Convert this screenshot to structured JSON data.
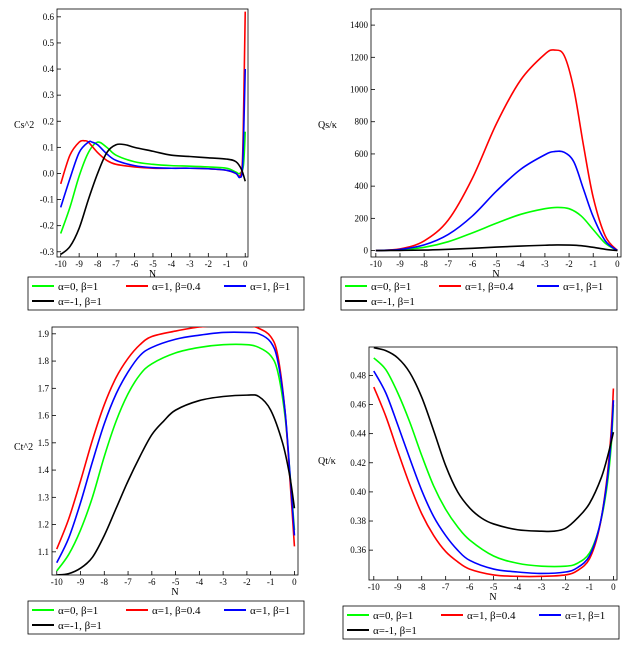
{
  "series_style": {
    "colors": [
      "#00ff00",
      "#ff0000",
      "#0000ff",
      "#000000"
    ]
  },
  "legend": [
    "α=0, β=1",
    "α=1, β=0.4",
    "α=1, β=1",
    "α=-1, β=1"
  ],
  "chart_data": [
    {
      "type": "line",
      "ylabel": "Cs^2",
      "xlabel": "N",
      "xlim": [
        -10.2,
        0.15
      ],
      "ylim": [
        -0.32,
        0.63
      ],
      "xticks": [
        -10,
        -9,
        -8,
        -7,
        -6,
        -5,
        -4,
        -3,
        -2,
        -1,
        0
      ],
      "yticks": [
        -0.3,
        -0.2,
        -0.1,
        0.0,
        0.1,
        0.2,
        0.3,
        0.4,
        0.5,
        0.6
      ],
      "ytick_labels": [
        "-0.3",
        "-0.2",
        "-0.1",
        "0.0",
        "0.1",
        "0.2",
        "0.3",
        "0.4",
        "0.5",
        "0.6"
      ],
      "series": [
        {
          "name": "α=0, β=1",
          "x": [
            -10,
            -9.5,
            -9,
            -8.5,
            -8,
            -7.5,
            -7,
            -6,
            -5,
            -4,
            -3,
            -2,
            -1,
            -0.5,
            -0.3,
            -0.1,
            0
          ],
          "y": [
            -0.23,
            -0.13,
            -0.01,
            0.08,
            0.12,
            0.1,
            0.07,
            0.045,
            0.035,
            0.03,
            0.028,
            0.025,
            0.02,
            0.005,
            0.0,
            0.03,
            0.16
          ]
        },
        {
          "name": "α=1, β=0.4",
          "x": [
            -10,
            -9.5,
            -9,
            -8.7,
            -8.5,
            -8,
            -7.5,
            -7,
            -6,
            -5,
            -4,
            -3,
            -2,
            -1,
            -0.5,
            -0.3,
            -0.15,
            -0.05,
            0
          ],
          "y": [
            -0.04,
            0.07,
            0.12,
            0.125,
            0.12,
            0.08,
            0.05,
            0.035,
            0.025,
            0.02,
            0.02,
            0.02,
            0.018,
            0.012,
            0.0,
            -0.01,
            0.05,
            0.4,
            0.62
          ]
        },
        {
          "name": "α=1, β=1",
          "x": [
            -10,
            -9.5,
            -9,
            -8.5,
            -8.3,
            -8,
            -7.5,
            -7,
            -6,
            -5,
            -4,
            -3,
            -2,
            -1,
            -0.5,
            -0.3,
            -0.15,
            -0.05,
            0
          ],
          "y": [
            -0.13,
            -0.02,
            0.08,
            0.12,
            0.12,
            0.11,
            0.075,
            0.05,
            0.03,
            0.022,
            0.02,
            0.02,
            0.018,
            0.012,
            0.0,
            -0.015,
            0.02,
            0.25,
            0.4
          ]
        },
        {
          "name": "α=-1, β=1",
          "x": [
            -10,
            -9.5,
            -9,
            -8.5,
            -8,
            -7.5,
            -7,
            -6.5,
            -6,
            -5,
            -4,
            -3,
            -2,
            -1,
            -0.5,
            -0.2,
            0
          ],
          "y": [
            -0.31,
            -0.28,
            -0.21,
            -0.1,
            0.0,
            0.08,
            0.11,
            0.11,
            0.1,
            0.085,
            0.07,
            0.065,
            0.06,
            0.055,
            0.045,
            0.015,
            -0.03
          ]
        }
      ]
    },
    {
      "type": "line",
      "ylabel": "Qs/κ",
      "xlabel": "N",
      "xlim": [
        -10.2,
        0.15
      ],
      "ylim": [
        -40,
        1500
      ],
      "xticks": [
        -10,
        -9,
        -8,
        -7,
        -6,
        -5,
        -4,
        -3,
        -2,
        -1,
        0
      ],
      "yticks": [
        0,
        200,
        400,
        600,
        800,
        1000,
        1200,
        1400
      ],
      "ytick_labels": [
        "0",
        "200",
        "400",
        "600",
        "800",
        "1000",
        "1200",
        "1400"
      ],
      "series": [
        {
          "name": "α=0, β=1",
          "x": [
            -10,
            -9,
            -8,
            -7,
            -6,
            -5,
            -4,
            -3,
            -2.5,
            -2,
            -1.5,
            -1,
            -0.5,
            0
          ],
          "y": [
            0,
            5,
            20,
            55,
            110,
            170,
            225,
            260,
            268,
            260,
            215,
            130,
            45,
            0
          ]
        },
        {
          "name": "α=1, β=0.4",
          "x": [
            -10,
            -9,
            -8,
            -7,
            -6,
            -5,
            -4,
            -3,
            -2.6,
            -2.2,
            -1.8,
            -1.4,
            -1,
            -0.5,
            0
          ],
          "y": [
            0,
            10,
            60,
            190,
            450,
            790,
            1060,
            1220,
            1245,
            1210,
            1000,
            650,
            330,
            90,
            0
          ]
        },
        {
          "name": "α=1, β=1",
          "x": [
            -10,
            -9,
            -8,
            -7,
            -6,
            -5,
            -4,
            -3,
            -2.6,
            -2.2,
            -1.8,
            -1.4,
            -1,
            -0.5,
            0
          ],
          "y": [
            0,
            7,
            35,
            100,
            215,
            370,
            505,
            595,
            615,
            610,
            550,
            380,
            210,
            60,
            0
          ]
        },
        {
          "name": "α=-1, β=1",
          "x": [
            -10,
            -9,
            -8,
            -7,
            -6,
            -5,
            -4,
            -3,
            -2.5,
            -2,
            -1.5,
            -1,
            -0.5,
            0
          ],
          "y": [
            0,
            1,
            3,
            8,
            14,
            22,
            28,
            33,
            35,
            34,
            30,
            20,
            8,
            0
          ]
        }
      ]
    },
    {
      "type": "line",
      "ylabel": "Ct^2",
      "xlabel": "N",
      "xlim": [
        -10.2,
        0.15
      ],
      "ylim": [
        1.015,
        1.925
      ],
      "xticks": [
        -10,
        -9,
        -8,
        -7,
        -6,
        -5,
        -4,
        -3,
        -2,
        -1,
        0
      ],
      "yticks": [
        1.1,
        1.2,
        1.3,
        1.4,
        1.5,
        1.6,
        1.7,
        1.8,
        1.9
      ],
      "ytick_labels": [
        "1.1",
        "1.2",
        "1.3",
        "1.4",
        "1.5",
        "1.6",
        "1.7",
        "1.8",
        "1.9"
      ],
      "series": [
        {
          "name": "α=0, β=1",
          "x": [
            -10,
            -9.5,
            -9,
            -8.5,
            -8,
            -7.5,
            -7,
            -6.5,
            -6,
            -5,
            -4,
            -3,
            -2,
            -1.5,
            -1,
            -0.7,
            -0.4,
            -0.2,
            0
          ],
          "y": [
            1.03,
            1.09,
            1.18,
            1.3,
            1.45,
            1.58,
            1.68,
            1.75,
            1.79,
            1.83,
            1.85,
            1.86,
            1.86,
            1.85,
            1.82,
            1.76,
            1.6,
            1.4,
            1.18
          ]
        },
        {
          "name": "α=1, β=0.4",
          "x": [
            -10,
            -9.5,
            -9,
            -8.5,
            -8,
            -7.5,
            -7,
            -6.5,
            -6,
            -5,
            -4,
            -3,
            -2,
            -1.5,
            -1,
            -0.7,
            -0.4,
            -0.2,
            0
          ],
          "y": [
            1.11,
            1.22,
            1.36,
            1.51,
            1.64,
            1.74,
            1.81,
            1.86,
            1.89,
            1.91,
            1.925,
            1.93,
            1.93,
            1.92,
            1.89,
            1.82,
            1.62,
            1.38,
            1.12
          ]
        },
        {
          "name": "α=1, β=1",
          "x": [
            -10,
            -9.5,
            -9,
            -8.5,
            -8,
            -7.5,
            -7,
            -6.5,
            -6,
            -5,
            -4,
            -3,
            -2,
            -1.5,
            -1,
            -0.7,
            -0.4,
            -0.2,
            0
          ],
          "y": [
            1.06,
            1.15,
            1.28,
            1.43,
            1.57,
            1.68,
            1.76,
            1.82,
            1.85,
            1.88,
            1.895,
            1.905,
            1.905,
            1.9,
            1.87,
            1.8,
            1.62,
            1.4,
            1.16
          ]
        },
        {
          "name": "α=-1, β=1",
          "x": [
            -10,
            -9.5,
            -9,
            -8.5,
            -8,
            -7.5,
            -7,
            -6.5,
            -6,
            -5.5,
            -5,
            -4,
            -3,
            -2,
            -1.5,
            -1,
            -0.5,
            -0.2,
            0
          ],
          "y": [
            1.015,
            1.02,
            1.04,
            1.08,
            1.16,
            1.26,
            1.36,
            1.45,
            1.53,
            1.58,
            1.62,
            1.655,
            1.67,
            1.675,
            1.67,
            1.62,
            1.5,
            1.38,
            1.26
          ]
        }
      ]
    },
    {
      "type": "line",
      "ylabel": "Qt/κ",
      "xlabel": "N",
      "xlim": [
        -10.2,
        0.15
      ],
      "ylim": [
        0.3395,
        0.4995
      ],
      "xticks": [
        -10,
        -9,
        -8,
        -7,
        -6,
        -5,
        -4,
        -3,
        -2,
        -1,
        0
      ],
      "yticks": [
        0.36,
        0.38,
        0.4,
        0.42,
        0.44,
        0.46,
        0.48
      ],
      "ytick_labels": [
        "0.36",
        "0.38",
        "0.40",
        "0.42",
        "0.44",
        "0.46",
        "0.48"
      ],
      "series": [
        {
          "name": "α=0, β=1",
          "x": [
            -10,
            -9.5,
            -9,
            -8.5,
            -8,
            -7.5,
            -7,
            -6.5,
            -6,
            -5,
            -4,
            -3,
            -2,
            -1.5,
            -1,
            -0.6,
            -0.3,
            -0.1,
            0
          ],
          "y": [
            0.492,
            0.484,
            0.468,
            0.448,
            0.425,
            0.404,
            0.388,
            0.376,
            0.367,
            0.356,
            0.351,
            0.349,
            0.349,
            0.351,
            0.358,
            0.375,
            0.4,
            0.43,
            0.46
          ]
        },
        {
          "name": "α=1, β=0.4",
          "x": [
            -10,
            -9.5,
            -9,
            -8.5,
            -8,
            -7.5,
            -7,
            -6.5,
            -6,
            -5,
            -4,
            -3,
            -2,
            -1.5,
            -1,
            -0.6,
            -0.3,
            -0.1,
            0
          ],
          "y": [
            0.472,
            0.452,
            0.428,
            0.405,
            0.385,
            0.37,
            0.359,
            0.352,
            0.347,
            0.343,
            0.342,
            0.342,
            0.343,
            0.346,
            0.354,
            0.374,
            0.405,
            0.44,
            0.471
          ]
        },
        {
          "name": "α=1, β=1",
          "x": [
            -10,
            -9.5,
            -9,
            -8.5,
            -8,
            -7.5,
            -7,
            -6.5,
            -6,
            -5,
            -4,
            -3,
            -2,
            -1.5,
            -1,
            -0.6,
            -0.3,
            -0.1,
            0
          ],
          "y": [
            0.483,
            0.468,
            0.446,
            0.423,
            0.401,
            0.383,
            0.37,
            0.36,
            0.353,
            0.347,
            0.345,
            0.344,
            0.345,
            0.348,
            0.356,
            0.375,
            0.403,
            0.435,
            0.463
          ]
        },
        {
          "name": "α=-1, β=1",
          "x": [
            -10,
            -9.5,
            -9,
            -8.5,
            -8,
            -7.5,
            -7,
            -6.5,
            -6,
            -5.5,
            -5,
            -4,
            -3,
            -2.5,
            -2,
            -1.5,
            -1,
            -0.5,
            -0.2,
            0
          ],
          "y": [
            0.499,
            0.497,
            0.492,
            0.482,
            0.465,
            0.442,
            0.418,
            0.4,
            0.389,
            0.382,
            0.378,
            0.374,
            0.373,
            0.373,
            0.375,
            0.382,
            0.392,
            0.41,
            0.427,
            0.441
          ]
        }
      ]
    }
  ]
}
